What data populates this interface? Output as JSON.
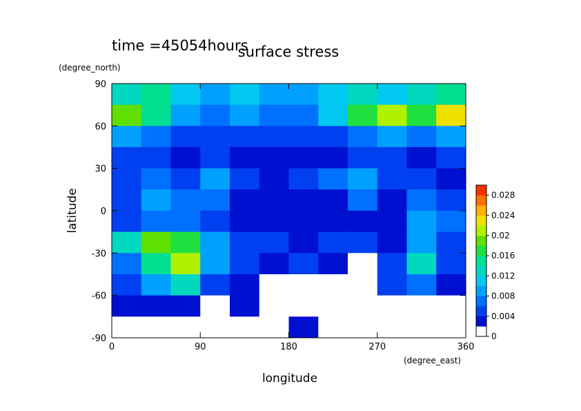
{
  "chart_data": {
    "type": "heatmap",
    "title": "surface stress",
    "subtitle": "time =45054hours",
    "x_label": "longitude",
    "x_units": "(degree_east)",
    "y_label": "latitude",
    "y_units": "(degree_north)",
    "x": [
      15,
      45,
      75,
      105,
      135,
      165,
      195,
      225,
      255,
      285,
      315,
      345
    ],
    "y": [
      82.5,
      67.5,
      52.5,
      37.5,
      22.5,
      7.5,
      -7.5,
      -22.5,
      -37.5,
      -52.5,
      -67.5,
      -82.5
    ],
    "z": [
      [
        0.012,
        0.014,
        0.01,
        0.008,
        0.01,
        0.008,
        0.008,
        0.01,
        0.012,
        0.01,
        0.012,
        0.014
      ],
      [
        0.018,
        0.014,
        0.008,
        0.006,
        0.008,
        0.006,
        0.006,
        0.01,
        0.016,
        0.02,
        0.016,
        0.022
      ],
      [
        0.008,
        0.006,
        0.004,
        0.004,
        0.004,
        0.004,
        0.004,
        0.005,
        0.006,
        0.008,
        0.006,
        0.008
      ],
      [
        0.004,
        0.004,
        0.003,
        0.004,
        0.002,
        0.002,
        0.003,
        0.002,
        0.004,
        0.004,
        0.002,
        0.004
      ],
      [
        0.004,
        0.006,
        0.005,
        0.008,
        0.004,
        0.002,
        0.004,
        0.006,
        0.008,
        0.004,
        0.004,
        0.002
      ],
      [
        0.004,
        0.008,
        0.006,
        0.006,
        0.003,
        0.002,
        0.003,
        0.003,
        0.006,
        0.003,
        0.006,
        0.004
      ],
      [
        0.004,
        0.006,
        0.006,
        0.004,
        0.003,
        0.002,
        0.002,
        0.003,
        0.002,
        0.002,
        0.008,
        0.006
      ],
      [
        0.012,
        0.018,
        0.016,
        0.008,
        0.004,
        0.004,
        0.003,
        0.004,
        0.004,
        0.003,
        0.008,
        0.004
      ],
      [
        0.006,
        0.014,
        0.02,
        0.008,
        0.004,
        0.003,
        0.004,
        0.002,
        0.001,
        0.004,
        0.012,
        0.004
      ],
      [
        0.004,
        0.008,
        0.012,
        0.004,
        0.003,
        0.001,
        0.001,
        0.001,
        0.001,
        0.004,
        0.006,
        0.002
      ],
      [
        0.002,
        0.003,
        0.003,
        0.001,
        0.002,
        0.001,
        0,
        0,
        0,
        0,
        0,
        0
      ],
      [
        0,
        0,
        0,
        0,
        0,
        0,
        0.003,
        0,
        0,
        0,
        0,
        0
      ]
    ],
    "xlim": [
      0,
      360
    ],
    "xticks": [
      0,
      90,
      180,
      270,
      360
    ],
    "ylim": [
      -90,
      90
    ],
    "yticks": [
      -90,
      -60,
      -30,
      0,
      30,
      60,
      90
    ],
    "clim": [
      0,
      0.03
    ],
    "cticks": [
      0,
      0.004,
      0.008,
      0.012,
      0.016,
      0.02,
      0.024,
      0.028
    ],
    "colors": [
      "#ffffff",
      "#0010d0",
      "#0040f0",
      "#0070ff",
      "#00a0ff",
      "#00c8f0",
      "#00d8c0",
      "#00e090",
      "#20e040",
      "#60e000",
      "#b0f000",
      "#f0e000",
      "#ffb000",
      "#ff7000",
      "#ff3000"
    ]
  }
}
